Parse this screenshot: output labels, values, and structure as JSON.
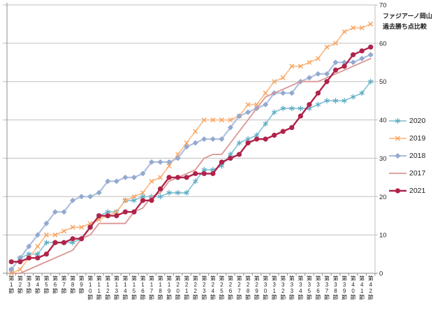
{
  "title": {
    "line1": "ファジアーノ岡山",
    "line2": "過去勝ち点比較"
  },
  "colors": {
    "background": "#ffffff",
    "gridline": "#bfbfbf",
    "axis": "#8c8c8c",
    "tick_label": "#262626",
    "title_text": "#1f1f1f",
    "legend_text": "#1f1f1f"
  },
  "chart_data": {
    "type": "line",
    "title": "ファジアーノ岡山 過去勝ち点比較",
    "xlabel": "",
    "ylabel": "",
    "ylim": [
      0,
      70
    ],
    "y_ticks": [
      0,
      10,
      20,
      30,
      40,
      50,
      60,
      70
    ],
    "grid": true,
    "legend_position": "right",
    "y_axis_side": "right",
    "categories": [
      "第1節",
      "第2節",
      "第3節",
      "第4節",
      "第5節",
      "第6節",
      "第7節",
      "第8節",
      "第9節",
      "第10節",
      "第11節",
      "第12節",
      "第13節",
      "第14節",
      "第15節",
      "第16節",
      "第17節",
      "第18節",
      "第19節",
      "第20節",
      "第21節",
      "第22節",
      "第23節",
      "第24節",
      "第25節",
      "第26節",
      "第27節",
      "第28節",
      "第29節",
      "第30節",
      "第31節",
      "第32節",
      "第33節",
      "第34節",
      "第35節",
      "第36節",
      "第37節",
      "第38節",
      "第39節",
      "第40節",
      "第41節",
      "第42節"
    ],
    "series": [
      {
        "name": "2020",
        "marker": "asterisk",
        "line_color": "#8ec6d6",
        "marker_color": "#58a9c2",
        "line_width": 1.8,
        "values": [
          1,
          4,
          5,
          5,
          8,
          8,
          8,
          8,
          9,
          12,
          15,
          16,
          16,
          19,
          19,
          20,
          20,
          20,
          21,
          21,
          21,
          24,
          27,
          27,
          28,
          31,
          34,
          35,
          36,
          39,
          42,
          43,
          43,
          43,
          43,
          44,
          45,
          45,
          45,
          46,
          47,
          50
        ]
      },
      {
        "name": "2019",
        "marker": "x",
        "line_color": "#fbbf8e",
        "marker_color": "#f5a25e",
        "line_width": 1.8,
        "values": [
          0,
          1,
          4,
          7,
          10,
          10,
          11,
          12,
          12,
          13,
          14,
          15,
          16,
          19,
          20,
          21,
          24,
          25,
          28,
          31,
          34,
          37,
          40,
          40,
          40,
          40,
          41,
          44,
          44,
          47,
          50,
          51,
          54,
          54,
          55,
          56,
          59,
          60,
          63,
          64,
          64,
          65
        ]
      },
      {
        "name": "2018",
        "marker": "diamond",
        "line_color": "#aec0e0",
        "marker_color": "#93a9cf",
        "line_width": 2.2,
        "values": [
          1,
          4,
          7,
          10,
          13,
          16,
          16,
          19,
          20,
          20,
          21,
          24,
          24,
          25,
          25,
          26,
          29,
          29,
          29,
          30,
          33,
          34,
          35,
          35,
          35,
          38,
          41,
          42,
          43,
          44,
          47,
          47,
          47,
          50,
          51,
          52,
          52,
          55,
          55,
          55,
          56,
          57
        ]
      },
      {
        "name": "2017",
        "marker": "none",
        "line_color": "#d99694",
        "marker_color": "#d99694",
        "line_width": 1.8,
        "values": [
          0,
          0,
          1,
          2,
          3,
          4,
          5,
          6,
          9,
          10,
          13,
          13,
          13,
          13,
          16,
          17,
          20,
          21,
          24,
          25,
          26,
          27,
          30,
          31,
          31,
          34,
          37,
          40,
          43,
          46,
          47,
          48,
          49,
          50,
          50,
          50,
          51,
          52,
          53,
          54,
          55,
          56
        ]
      },
      {
        "name": "2021",
        "marker": "circle",
        "line_color": "#b0234a",
        "marker_color": "#b0234a",
        "line_width": 2.4,
        "values": [
          3,
          3,
          4,
          4,
          5,
          8,
          8,
          9,
          9,
          12,
          15,
          15,
          15,
          16,
          16,
          19,
          19,
          22,
          25,
          25,
          25,
          26,
          26,
          26,
          29,
          30,
          31,
          34,
          35,
          35,
          36,
          37,
          38,
          41,
          44,
          47,
          50,
          53,
          54,
          57,
          58,
          59
        ]
      }
    ],
    "legend_order": [
      "2020",
      "2019",
      "2018",
      "2017",
      "2021"
    ]
  }
}
